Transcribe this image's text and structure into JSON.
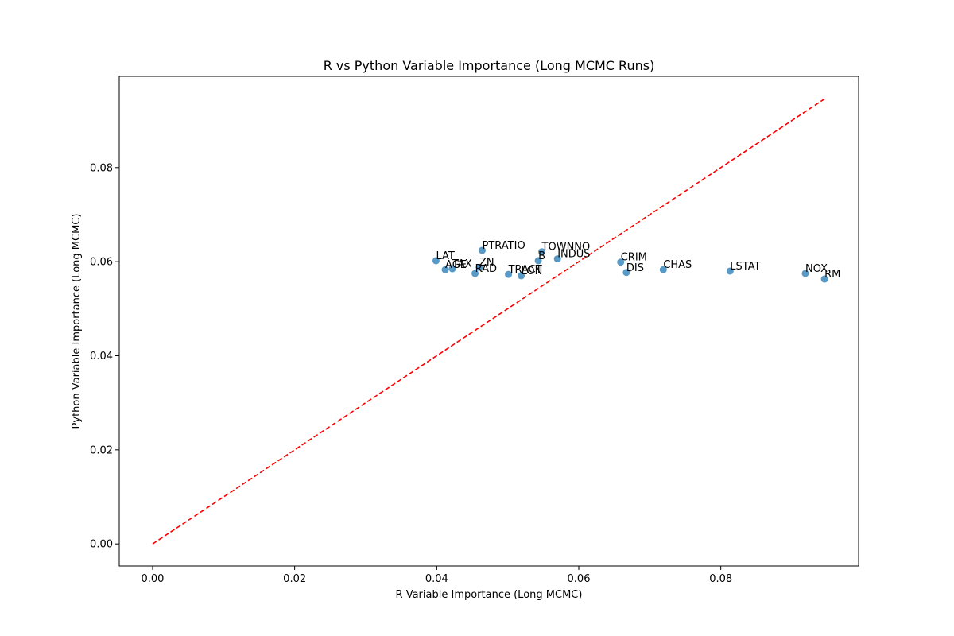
{
  "chart_data": {
    "type": "scatter",
    "title": "R vs Python Variable Importance (Long MCMC Runs)",
    "xlabel": "R Variable Importance (Long MCMC)",
    "ylabel": "Python Variable Importance (Long MCMC)",
    "xlim": [
      -0.0047,
      0.0994
    ],
    "ylim": [
      -0.0047,
      0.0994
    ],
    "xticks": [
      "0.00",
      "0.02",
      "0.04",
      "0.06",
      "0.08"
    ],
    "yticks": [
      "0.00",
      "0.02",
      "0.04",
      "0.06",
      "0.08"
    ],
    "xtick_values": [
      0,
      0.02,
      0.04,
      0.06,
      0.08
    ],
    "ytick_values": [
      0,
      0.02,
      0.04,
      0.06,
      0.08
    ],
    "grid": false,
    "point_color": "#1f77b4",
    "reference_line": {
      "x": [
        0,
        0.0946
      ],
      "y": [
        0,
        0.0946
      ],
      "color": "#ff0000",
      "style": "dashed"
    },
    "points": [
      {
        "label": "LAT",
        "x": 0.0399,
        "y": 0.0602
      },
      {
        "label": "AGE",
        "x": 0.0412,
        "y": 0.0583
      },
      {
        "label": "TAX",
        "x": 0.0422,
        "y": 0.0585
      },
      {
        "label": "ZN",
        "x": 0.046,
        "y": 0.0588
      },
      {
        "label": "RAD",
        "x": 0.0454,
        "y": 0.0575
      },
      {
        "label": "PTRATIO",
        "x": 0.0464,
        "y": 0.0624
      },
      {
        "label": "TRACT",
        "x": 0.0501,
        "y": 0.0573
      },
      {
        "label": "LON",
        "x": 0.0519,
        "y": 0.057
      },
      {
        "label": "B",
        "x": 0.0543,
        "y": 0.0602
      },
      {
        "label": "TOWNNO",
        "x": 0.0548,
        "y": 0.0621
      },
      {
        "label": "INDUS",
        "x": 0.057,
        "y": 0.0606
      },
      {
        "label": "CRIM",
        "x": 0.0659,
        "y": 0.0599
      },
      {
        "label": "DIS",
        "x": 0.0667,
        "y": 0.0577
      },
      {
        "label": "CHAS",
        "x": 0.0719,
        "y": 0.0583
      },
      {
        "label": "LSTAT",
        "x": 0.0813,
        "y": 0.058
      },
      {
        "label": "NOX",
        "x": 0.0919,
        "y": 0.0575
      },
      {
        "label": "RM",
        "x": 0.0946,
        "y": 0.0563
      }
    ]
  }
}
